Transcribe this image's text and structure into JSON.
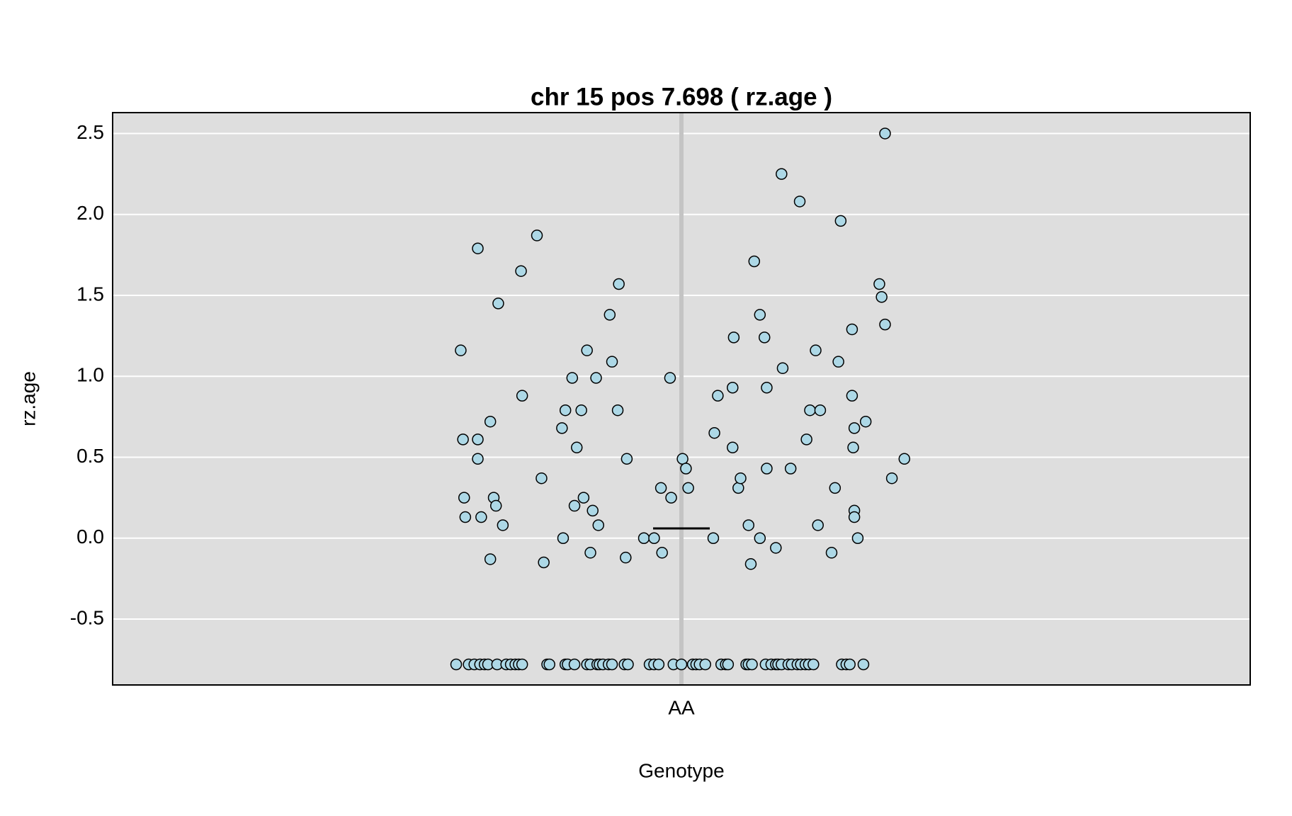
{
  "chart_data": {
    "type": "scatter",
    "title": "chr 15 pos 7.698 ( rz.age )",
    "xlabel": "Genotype",
    "ylabel": "rz.age",
    "color": "#add8e6",
    "grid": true,
    "mean": 0.06,
    "xlim": [
      0.5,
      1.5
    ],
    "xticks": [
      {
        "value": 1,
        "label": "AA"
      }
    ],
    "ylim": [
      -0.907,
      2.629
    ],
    "yticks": [
      -0.5,
      {
        "value": 0,
        "label": "0.0"
      },
      0.5,
      {
        "value": 1,
        "label": "1.0"
      },
      1.5,
      {
        "value": 2,
        "label": "2.0"
      },
      2.5
    ],
    "x": [
      0.806,
      0.808,
      0.821,
      0.821,
      0.809,
      0.81,
      0.821,
      0.839,
      0.832,
      0.835,
      0.837,
      0.824,
      0.843,
      0.832,
      0.859,
      0.86,
      0.873,
      0.877,
      0.879,
      0.895,
      0.896,
      0.898,
      0.904,
      0.908,
      0.906,
      0.912,
      0.914,
      0.917,
      0.92,
      0.922,
      0.925,
      0.927,
      0.937,
      0.939,
      0.945,
      0.944,
      0.952,
      0.951,
      0.967,
      0.976,
      0.982,
      0.983,
      0.99,
      0.991,
      1.001,
      1.004,
      1.006,
      1.028,
      1.029,
      1.032,
      1.045,
      1.046,
      1.045,
      1.05,
      1.052,
      1.059,
      1.061,
      1.064,
      1.069,
      1.069,
      1.073,
      1.075,
      1.075,
      1.083,
      1.088,
      1.089,
      1.096,
      1.104,
      1.11,
      1.113,
      1.118,
      1.12,
      1.122,
      1.132,
      1.135,
      1.138,
      1.14,
      1.15,
      1.15,
      1.151,
      1.152,
      1.152,
      1.152,
      1.155,
      1.162,
      1.174,
      1.176,
      1.179,
      1.179,
      1.185,
      1.196,
      0.802,
      0.813,
      0.818,
      0.823,
      0.827,
      0.83,
      0.838,
      0.846,
      0.85,
      0.854,
      0.857,
      0.86,
      0.882,
      0.884,
      0.898,
      0.9,
      0.906,
      0.917,
      0.92,
      0.926,
      0.928,
      0.931,
      0.936,
      0.939,
      0.95,
      0.953,
      0.972,
      0.976,
      0.98,
      0.993,
      1.0,
      1.01,
      1.013,
      1.016,
      1.021,
      1.035,
      1.039,
      1.041,
      1.057,
      1.059,
      1.062,
      1.074,
      1.079,
      1.083,
      1.085,
      1.088,
      1.094,
      1.097,
      1.102,
      1.105,
      1.109,
      1.112,
      1.116,
      1.141,
      1.145,
      1.148,
      1.16
    ],
    "values": [
      1.16,
      0.61,
      0.61,
      0.49,
      0.25,
      0.13,
      1.79,
      1.45,
      0.72,
      0.25,
      0.2,
      0.13,
      0.08,
      -0.13,
      1.65,
      0.88,
      1.87,
      0.37,
      -0.15,
      0.68,
      0,
      0.79,
      0.99,
      0.56,
      0.2,
      0.79,
      0.25,
      1.16,
      -0.09,
      0.17,
      0.99,
      0.08,
      1.38,
      1.09,
      1.57,
      0.79,
      0.49,
      -0.12,
      0,
      0,
      0.31,
      -0.09,
      0.99,
      0.25,
      0.49,
      0.43,
      0.31,
      0,
      0.65,
      0.88,
      0.93,
      1.24,
      0.56,
      0.31,
      0.37,
      0.08,
      -0.16,
      1.71,
      1.38,
      0,
      1.24,
      0.93,
      0.43,
      -0.06,
      2.25,
      1.05,
      0.43,
      2.08,
      0.61,
      0.79,
      1.16,
      0.08,
      0.79,
      -0.09,
      0.31,
      1.09,
      1.96,
      1.29,
      0.88,
      0.56,
      0.68,
      0.17,
      0.13,
      0,
      0.72,
      1.57,
      1.49,
      2.5,
      1.32,
      0.37,
      0.49,
      -0.78,
      -0.78,
      -0.78,
      -0.78,
      -0.78,
      -0.78,
      -0.78,
      -0.78,
      -0.78,
      -0.78,
      -0.78,
      -0.78,
      -0.78,
      -0.78,
      -0.78,
      -0.78,
      -0.78,
      -0.78,
      -0.78,
      -0.78,
      -0.78,
      -0.78,
      -0.78,
      -0.78,
      -0.78,
      -0.78,
      -0.78,
      -0.78,
      -0.78,
      -0.78,
      -0.78,
      -0.78,
      -0.78,
      -0.78,
      -0.78,
      -0.78,
      -0.78,
      -0.78,
      -0.78,
      -0.78,
      -0.78,
      -0.78,
      -0.78,
      -0.78,
      -0.78,
      -0.78,
      -0.78,
      -0.78,
      -0.78,
      -0.78,
      -0.78,
      -0.78,
      -0.78,
      -0.78,
      -0.78,
      -0.78,
      -0.78
    ]
  }
}
